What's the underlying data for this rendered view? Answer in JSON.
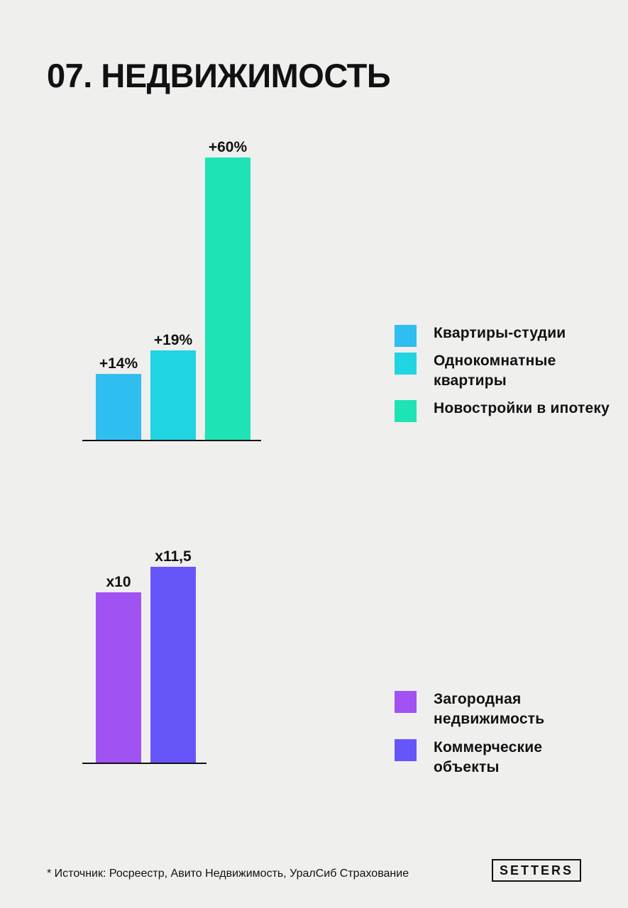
{
  "page": {
    "title": "07. НЕДВИЖИМОСТЬ",
    "source_note": "* Источник: Росреестр, Авито Недвижимость, УралСиб Страхование",
    "brand": "SETTERS"
  },
  "chart_data": [
    {
      "type": "bar",
      "categories": [
        "Квартиры-студии",
        "Однокомнатные квартиры",
        "Новостройки в ипотеку"
      ],
      "values": [
        14,
        19,
        60
      ],
      "data_labels": [
        "+14%",
        "+19%",
        "+60%"
      ],
      "colors": [
        "#30bdf0",
        "#20d4e2",
        "#1ee3b5"
      ],
      "ylim": [
        0,
        60
      ],
      "grid": false,
      "legend": {
        "placement": "right",
        "items": [
          {
            "label": "Квартиры-студии",
            "color": "#30bdf0"
          },
          {
            "label": "Однокомнатные квартиры",
            "color": "#20d4e2"
          },
          {
            "label": "Новостройки в ипотеку",
            "color": "#1ee3b5"
          }
        ]
      }
    },
    {
      "type": "bar",
      "categories": [
        "Загородная недвижимость",
        "Коммерческие объекты"
      ],
      "values": [
        10,
        11.5
      ],
      "data_labels": [
        "x10",
        "x11,5"
      ],
      "colors": [
        "#a052f2",
        "#6656fa"
      ],
      "ylim": [
        0,
        11.5
      ],
      "grid": false,
      "legend": {
        "placement": "right",
        "items": [
          {
            "label": "Загородная недвижимость",
            "color": "#a052f2"
          },
          {
            "label": "Коммерческие объекты",
            "color": "#6656fa"
          }
        ]
      }
    }
  ]
}
